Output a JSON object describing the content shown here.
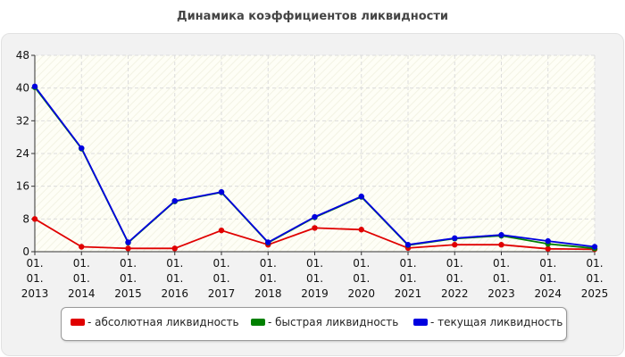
{
  "title": "Динамика коэффициентов ликвидности",
  "colors": {
    "absolute": "#e00000",
    "quick": "#008000",
    "current": "#0000e0"
  },
  "legend": {
    "items": [
      {
        "label": "- абсолютная ликвидность",
        "color": "#e00000"
      },
      {
        "label": "- быстрая ликвидность",
        "color": "#008000"
      },
      {
        "label": "- текущая ликвидность",
        "color": "#0000e0"
      }
    ]
  },
  "chart_data": {
    "type": "line",
    "categories": [
      "01. 01. 2013",
      "01. 01. 2014",
      "01. 01. 2015",
      "01. 01. 2016",
      "01. 01. 2017",
      "01. 01. 2018",
      "01. 01. 2019",
      "01. 01. 2020",
      "01. 01. 2021",
      "01. 01. 2022",
      "01. 01. 2023",
      "01. 01. 2024",
      "01. 01. 2025"
    ],
    "category_lines": [
      [
        "01.",
        "01.",
        "2013"
      ],
      [
        "01.",
        "01.",
        "2014"
      ],
      [
        "01.",
        "01.",
        "2015"
      ],
      [
        "01.",
        "01.",
        "2016"
      ],
      [
        "01.",
        "01.",
        "2017"
      ],
      [
        "01.",
        "01.",
        "2018"
      ],
      [
        "01.",
        "01.",
        "2019"
      ],
      [
        "01.",
        "01.",
        "2020"
      ],
      [
        "01.",
        "01.",
        "2021"
      ],
      [
        "01.",
        "01.",
        "2022"
      ],
      [
        "01.",
        "01.",
        "2023"
      ],
      [
        "01.",
        "01.",
        "2024"
      ],
      [
        "01.",
        "01.",
        "2025"
      ]
    ],
    "y_ticks": [
      "0",
      "8",
      "16",
      "24",
      "32",
      "40",
      "48"
    ],
    "ylim": [
      0,
      48
    ],
    "grid": true,
    "legend_position": "bottom",
    "title": "Динамика коэффициентов ликвидности",
    "series": [
      {
        "name": "- абсолютная ликвидность",
        "color": "#e00000",
        "values": [
          8.0,
          1.2,
          0.8,
          0.8,
          5.2,
          1.7,
          5.8,
          5.4,
          0.9,
          1.7,
          1.7,
          0.7,
          0.6
        ]
      },
      {
        "name": "- быстрая ликвидность",
        "color": "#008000",
        "values": [
          40.2,
          25.2,
          2.2,
          12.3,
          14.5,
          2.2,
          8.4,
          13.4,
          1.6,
          3.2,
          3.9,
          1.9,
          0.8
        ]
      },
      {
        "name": "- текущая ликвидность",
        "color": "#0000e0",
        "values": [
          40.4,
          25.3,
          2.3,
          12.4,
          14.6,
          2.3,
          8.5,
          13.5,
          1.7,
          3.3,
          4.1,
          2.6,
          1.2
        ]
      }
    ]
  }
}
